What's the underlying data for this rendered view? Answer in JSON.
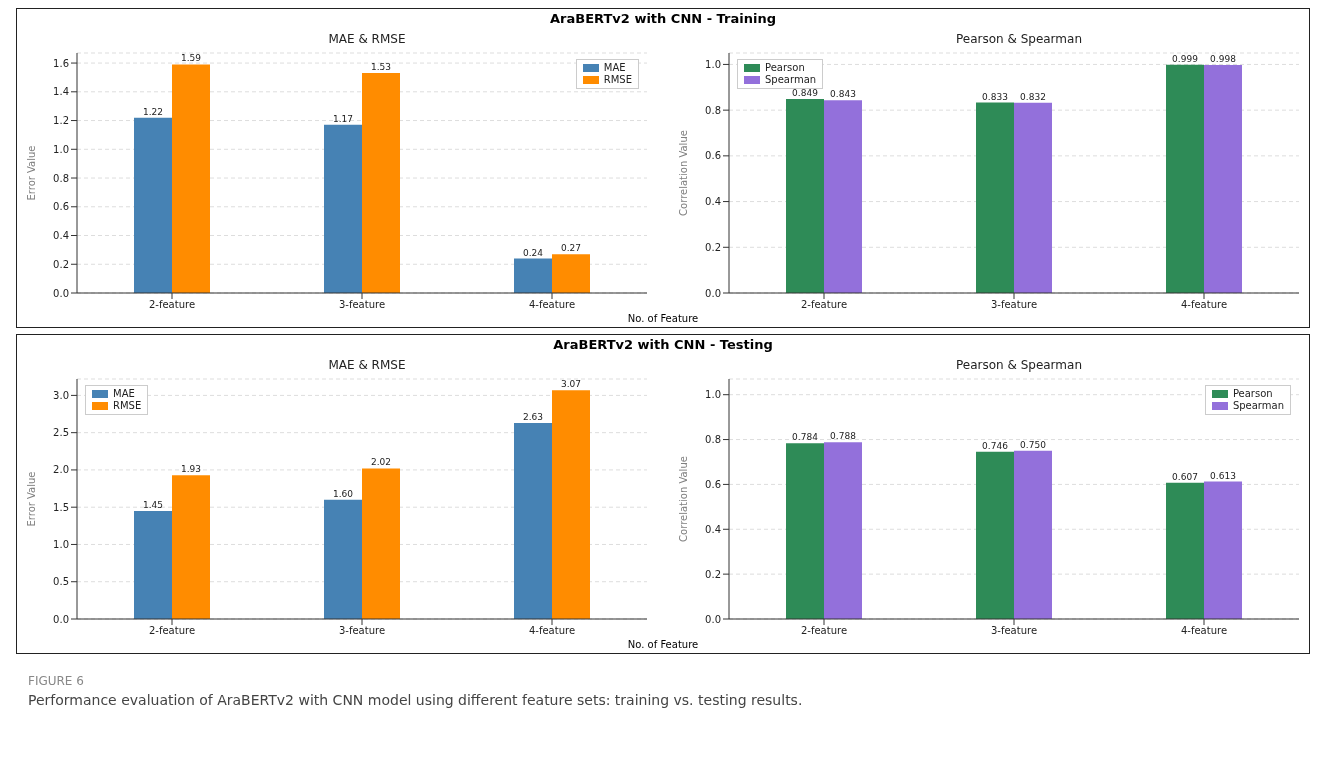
{
  "chart_data": [
    {
      "type": "bar",
      "title": "MAE & RMSE",
      "xlabel": "No. of Feature",
      "ylabel": "Error Value",
      "annotations": [
        "AraBERTv2 with CNN - Training"
      ],
      "categories": [
        "2-feature",
        "3-feature",
        "4-feature"
      ],
      "series": [
        {
          "name": "MAE",
          "color": "#4682b4",
          "values": [
            1.22,
            1.17,
            0.24
          ],
          "value_labels": [
            "1.22",
            "1.17",
            "0.24"
          ]
        },
        {
          "name": "RMSE",
          "color": "#ff8c00",
          "values": [
            1.59,
            1.53,
            0.27
          ],
          "value_labels": [
            "1.59",
            "1.53",
            "0.27"
          ]
        }
      ],
      "ylim": [
        0,
        1.67
      ],
      "yticks": [
        {
          "value": 0,
          "label": "0.0"
        },
        {
          "value": 0.2,
          "label": "0.2"
        },
        {
          "value": 0.4,
          "label": "0.4"
        },
        {
          "value": 0.6,
          "label": "0.6"
        },
        {
          "value": 0.8,
          "label": "0.8"
        },
        {
          "value": 1,
          "label": "1.0"
        },
        {
          "value": 1.2,
          "label": "1.2"
        },
        {
          "value": 1.4,
          "label": "1.4"
        },
        {
          "value": 1.6,
          "label": "1.6"
        }
      ],
      "grid": "y",
      "legend": "top right"
    },
    {
      "type": "bar",
      "title": "Pearson & Spearman",
      "ylabel": "Correlation Value",
      "categories": [
        "2-feature",
        "3-feature",
        "4-feature"
      ],
      "series": [
        {
          "name": "Pearson",
          "color": "#2e8b57",
          "values": [
            0.849,
            0.833,
            0.999
          ],
          "value_labels": [
            "0.849",
            "0.833",
            "0.999"
          ]
        },
        {
          "name": "Spearman",
          "color": "#9370db",
          "values": [
            0.843,
            0.832,
            0.998
          ],
          "value_labels": [
            "0.843",
            "0.832",
            "0.998"
          ]
        }
      ],
      "ylim": [
        0,
        1.05
      ],
      "yticks": [
        {
          "value": 0,
          "label": "0.0"
        },
        {
          "value": 0.2,
          "label": "0.2"
        },
        {
          "value": 0.4,
          "label": "0.4"
        },
        {
          "value": 0.6,
          "label": "0.6"
        },
        {
          "value": 0.8,
          "label": "0.8"
        },
        {
          "value": 1,
          "label": "1.0"
        }
      ],
      "grid": "y",
      "legend": "top left"
    },
    {
      "type": "bar",
      "title": "MAE & RMSE",
      "xlabel": "No. of Feature",
      "ylabel": "Error Value",
      "annotations": [
        "AraBERTv2 with CNN - Testing",
        "FIGURE 6",
        "Performance evaluation of AraBERTv2 with CNN model using different feature sets: training vs. testing results."
      ],
      "categories": [
        "2-feature",
        "3-feature",
        "4-feature"
      ],
      "series": [
        {
          "name": "MAE",
          "color": "#4682b4",
          "values": [
            1.45,
            1.6,
            2.63
          ],
          "value_labels": [
            "1.45",
            "1.60",
            "2.63"
          ]
        },
        {
          "name": "RMSE",
          "color": "#ff8c00",
          "values": [
            1.93,
            2.02,
            3.07
          ],
          "value_labels": [
            "1.93",
            "2.02",
            "3.07"
          ]
        }
      ],
      "ylim": [
        0,
        3.22
      ],
      "yticks": [
        {
          "value": 0,
          "label": "0.0"
        },
        {
          "value": 0.5,
          "label": "0.5"
        },
        {
          "value": 1,
          "label": "1.0"
        },
        {
          "value": 1.5,
          "label": "1.5"
        },
        {
          "value": 2,
          "label": "2.0"
        },
        {
          "value": 2.5,
          "label": "2.5"
        },
        {
          "value": 3,
          "label": "3.0"
        }
      ],
      "grid": "y",
      "legend": "top left"
    },
    {
      "type": "bar",
      "title": "Pearson & Spearman",
      "ylabel": "Correlation Value",
      "categories": [
        "2-feature",
        "3-feature",
        "4-feature"
      ],
      "series": [
        {
          "name": "Pearson",
          "color": "#2e8b57",
          "values": [
            0.784,
            0.746,
            0.607
          ],
          "value_labels": [
            "0.784",
            "0.746",
            "0.607"
          ]
        },
        {
          "name": "Spearman",
          "color": "#9370db",
          "values": [
            0.788,
            0.75,
            0.613
          ],
          "value_labels": [
            "0.788",
            "0.750",
            "0.613"
          ]
        }
      ],
      "ylim": [
        0,
        1.07
      ],
      "yticks": [
        {
          "value": 0,
          "label": "0.0"
        },
        {
          "value": 0.2,
          "label": "0.2"
        },
        {
          "value": 0.4,
          "label": "0.4"
        },
        {
          "value": 0.6,
          "label": "0.6"
        },
        {
          "value": 0.8,
          "label": "0.8"
        },
        {
          "value": 1,
          "label": "1.0"
        }
      ],
      "grid": "y",
      "legend": "top right"
    }
  ]
}
